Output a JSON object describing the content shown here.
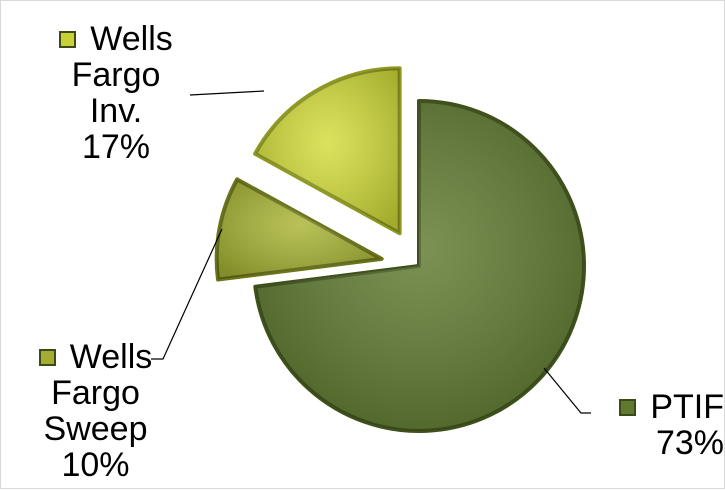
{
  "chart_data": {
    "type": "pie",
    "title": "",
    "slices": [
      {
        "name": "PTIF",
        "value": 73,
        "label": "73%",
        "color": "#5f7a2f",
        "edge": "#3d5118",
        "exploded": false
      },
      {
        "name": "Wells Fargo Sweep",
        "value": 10,
        "label": "10%",
        "color": "#a9b534",
        "edge": "#6b7418",
        "exploded": true
      },
      {
        "name": "Wells Fargo Inv.",
        "value": 17,
        "label": "17%",
        "color": "#d2dc3a",
        "edge": "#8f9a1e",
        "exploded": true
      }
    ]
  },
  "labels": {
    "inv": {
      "name_line1": "Wells",
      "name_line2": "Fargo",
      "name_line3": "Inv.",
      "pct": "17%"
    },
    "sweep": {
      "name_line1": "Wells",
      "name_line2": "Fargo",
      "name_line3": "Sweep",
      "pct": "10%"
    },
    "ptif": {
      "name_line1": "PTIF",
      "pct": "73%"
    }
  }
}
